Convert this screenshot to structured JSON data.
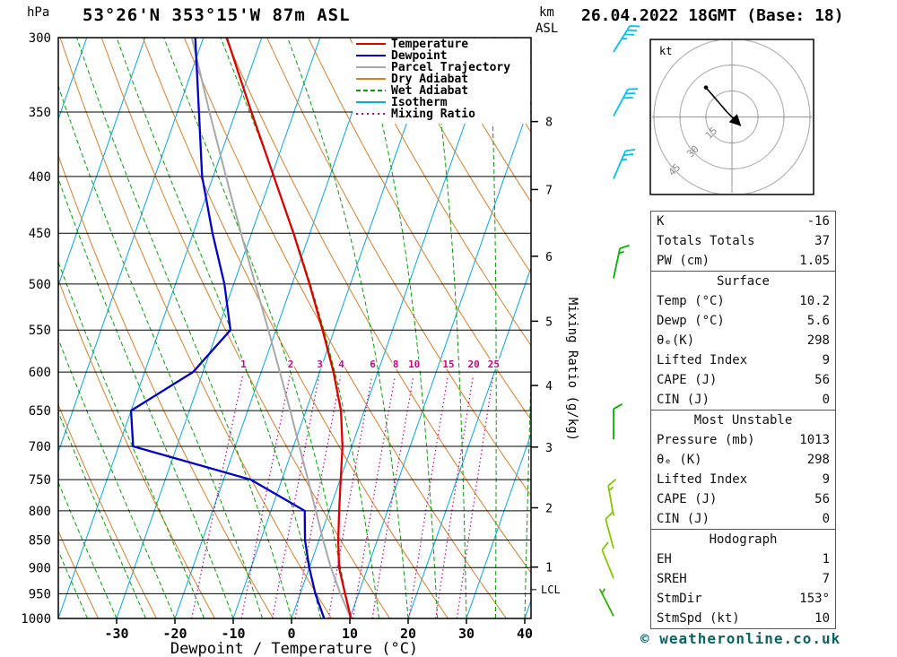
{
  "header": {
    "station": "53°26'N 353°15'W 87m ASL",
    "datetime": "26.04.2022 18GMT (Base: 18)"
  },
  "axes": {
    "pressure_unit": "hPa",
    "km_unit": "km",
    "asl_unit": "ASL",
    "x_title": "Dewpoint / Temperature (°C)",
    "mixing_ratio_title": "Mixing Ratio (g/kg)",
    "lcl_label": "LCL"
  },
  "legend": [
    {
      "label": "Temperature",
      "color": "#e00000",
      "dash": ""
    },
    {
      "label": "Dewpoint",
      "color": "#0000cc",
      "dash": ""
    },
    {
      "label": "Parcel Trajectory",
      "color": "#a8a8a8",
      "dash": ""
    },
    {
      "label": "Dry Adiabat",
      "color": "#dd7d28",
      "dash": ""
    },
    {
      "label": "Wet Adiabat",
      "color": "#00a400",
      "dash": "5,3"
    },
    {
      "label": "Isotherm",
      "color": "#00a8e8",
      "dash": ""
    },
    {
      "label": "Mixing Ratio",
      "color": "#cc0088",
      "dash": "2,4"
    }
  ],
  "chart_data": {
    "type": "skewt_log_p_sounding",
    "pressure_axis": {
      "unit": "hPa",
      "log_scale": true,
      "ticks": [
        300,
        350,
        400,
        450,
        500,
        550,
        600,
        650,
        700,
        750,
        800,
        850,
        900,
        950,
        1000
      ]
    },
    "temperature_axis": {
      "unit": "°C",
      "ticks": [
        -30,
        -20,
        -10,
        0,
        10,
        20,
        30,
        40
      ]
    },
    "km_asl_ticks": [
      {
        "km": 1,
        "hPa": 899
      },
      {
        "km": 2,
        "hPa": 795
      },
      {
        "km": 3,
        "hPa": 701
      },
      {
        "km": 4,
        "hPa": 617
      },
      {
        "km": 5,
        "hPa": 540
      },
      {
        "km": 6,
        "hPa": 472
      },
      {
        "km": 7,
        "hPa": 411
      },
      {
        "km": 8,
        "hPa": 357
      }
    ],
    "lcl_hPa": 942,
    "sounding": {
      "pressure_hPa": [
        1000,
        950,
        900,
        850,
        800,
        750,
        700,
        650,
        600,
        550,
        500,
        450,
        400,
        350,
        300
      ],
      "temperature_C": [
        10.2,
        7.7,
        5.1,
        3.3,
        1.7,
        0.1,
        -1.6,
        -4.0,
        -7.6,
        -12.0,
        -17.0,
        -22.8,
        -29.6,
        -37.3,
        -46.0
      ],
      "dewpoint_C": [
        5.6,
        2.6,
        0.0,
        -2.4,
        -4.2,
        -15.3,
        -37.5,
        -40.0,
        -31.7,
        -27.8,
        -31.6,
        -36.7,
        -41.9,
        -46.3,
        -51.4
      ],
      "parcel_C": [
        10.2,
        6.9,
        3.7,
        0.7,
        -2.3,
        -5.5,
        -9.0,
        -12.7,
        -16.8,
        -21.3,
        -26.3,
        -31.8,
        -37.8,
        -44.5,
        -52.0
      ]
    },
    "mixing_ratio_lines_gkg": [
      1,
      2,
      3,
      4,
      6,
      8,
      10,
      15,
      20,
      25
    ],
    "isotherms_C": {
      "min": -80,
      "max": 40,
      "step": 10
    },
    "dry_adiabats_K": {
      "min": 230,
      "max": 400,
      "step": 10
    },
    "wet_adiabats_startC": {
      "min": -55,
      "max": 40,
      "step": 5
    },
    "wind_barbs": [
      {
        "hPa": 309,
        "dir_deg": 212,
        "speed_kt": 35,
        "color": "#00c3f0"
      },
      {
        "hPa": 353,
        "dir_deg": 208,
        "speed_kt": 30,
        "color": "#00c3f0"
      },
      {
        "hPa": 402,
        "dir_deg": 203,
        "speed_kt": 25,
        "color": "#00c3f0"
      },
      {
        "hPa": 494,
        "dir_deg": 192,
        "speed_kt": 15,
        "color": "#00b400"
      },
      {
        "hPa": 690,
        "dir_deg": 180,
        "speed_kt": 10,
        "color": "#00b400"
      },
      {
        "hPa": 808,
        "dir_deg": 170,
        "speed_kt": 15,
        "color": "#84c800"
      },
      {
        "hPa": 865,
        "dir_deg": 165,
        "speed_kt": 10,
        "color": "#84c800"
      },
      {
        "hPa": 920,
        "dir_deg": 158,
        "speed_kt": 10,
        "color": "#84c800"
      },
      {
        "hPa": 995,
        "dir_deg": 153,
        "speed_kt": 5,
        "color": "#2fb400"
      }
    ]
  },
  "hodograph": {
    "unit_label": "kt",
    "ring_kt": [
      15,
      30,
      45
    ],
    "trace_kt": [
      [
        -15,
        17
      ],
      [
        -3,
        3
      ],
      [
        5,
        -5
      ]
    ]
  },
  "stats_table": {
    "sections": [
      {
        "header": "",
        "rows": [
          [
            "K",
            "-16"
          ],
          [
            "Totals Totals",
            "37"
          ],
          [
            "PW (cm)",
            "1.05"
          ]
        ]
      },
      {
        "header": "Surface",
        "rows": [
          [
            "Temp (°C)",
            "10.2"
          ],
          [
            "Dewp (°C)",
            "5.6"
          ],
          [
            "θₑ(K)",
            "298"
          ],
          [
            "Lifted Index",
            "9"
          ],
          [
            "CAPE (J)",
            "56"
          ],
          [
            "CIN (J)",
            "0"
          ]
        ]
      },
      {
        "header": "Most Unstable",
        "rows": [
          [
            "Pressure (mb)",
            "1013"
          ],
          [
            "θₑ (K)",
            "298"
          ],
          [
            "Lifted Index",
            "9"
          ],
          [
            "CAPE (J)",
            "56"
          ],
          [
            "CIN (J)",
            "0"
          ]
        ]
      },
      {
        "header": "Hodograph",
        "rows": [
          [
            "EH",
            "1"
          ],
          [
            "SREH",
            "7"
          ],
          [
            "StmDir",
            "153°"
          ],
          [
            "StmSpd (kt)",
            "10"
          ]
        ]
      }
    ]
  },
  "footer": {
    "copyright": "© weatheronline.co.uk"
  }
}
